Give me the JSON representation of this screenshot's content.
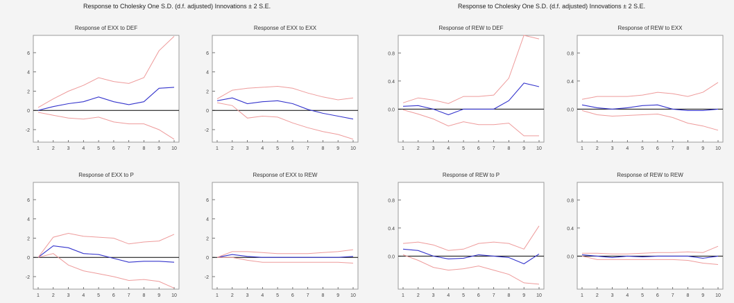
{
  "figures": [
    {
      "title": "Response to Cholesky One S.D. (d.f. adjusted) Innovations ± 2 S.E."
    },
    {
      "title": "Response to Cholesky One S.D. (d.f. adjusted) Innovations ± 2 S.E."
    }
  ],
  "colors": {
    "response": "#3333cc",
    "band": "#ee9a9a",
    "zero_line": "#000000",
    "frame": "#9a9a9a"
  },
  "chart_data": [
    {
      "type": "line",
      "title": "Response of EXX to DEF",
      "x": [
        1,
        2,
        3,
        4,
        5,
        6,
        7,
        8,
        9,
        10
      ],
      "yticks": [
        -2,
        0,
        2,
        4,
        6
      ],
      "ylim": [
        -3.3,
        7.8
      ],
      "series": [
        {
          "role": "response",
          "values": [
            0.0,
            0.4,
            0.7,
            0.9,
            1.4,
            0.9,
            0.6,
            0.9,
            2.3,
            2.4
          ]
        },
        {
          "role": "upper",
          "values": [
            0.3,
            1.2,
            2.0,
            2.6,
            3.4,
            3.0,
            2.8,
            3.4,
            6.2,
            7.7
          ]
        },
        {
          "role": "lower",
          "values": [
            -0.2,
            -0.5,
            -0.8,
            -0.9,
            -0.7,
            -1.2,
            -1.4,
            -1.4,
            -2.0,
            -3.0
          ]
        }
      ]
    },
    {
      "type": "line",
      "title": "Response of EXX to EXX",
      "x": [
        1,
        2,
        3,
        4,
        5,
        6,
        7,
        8,
        9,
        10
      ],
      "yticks": [
        -2,
        0,
        2,
        4,
        6
      ],
      "ylim": [
        -3.3,
        7.8
      ],
      "series": [
        {
          "role": "response",
          "values": [
            1.0,
            1.3,
            0.7,
            0.9,
            1.0,
            0.7,
            0.1,
            -0.3,
            -0.6,
            -0.9
          ]
        },
        {
          "role": "upper",
          "values": [
            1.2,
            2.1,
            2.3,
            2.4,
            2.5,
            2.3,
            1.8,
            1.4,
            1.1,
            1.3
          ]
        },
        {
          "role": "lower",
          "values": [
            0.8,
            0.5,
            -0.8,
            -0.6,
            -0.7,
            -1.3,
            -1.8,
            -2.2,
            -2.5,
            -3.0
          ]
        }
      ]
    },
    {
      "type": "line",
      "title": "Response of REW to DEF",
      "x": [
        1,
        2,
        3,
        4,
        5,
        6,
        7,
        8,
        9,
        10
      ],
      "yticks": [
        0.0,
        0.4,
        0.8
      ],
      "yticklabels": [
        "0.0",
        "0.4",
        "0.8"
      ],
      "ylim": [
        -0.47,
        1.05
      ],
      "series": [
        {
          "role": "response",
          "values": [
            0.04,
            0.05,
            0.0,
            -0.08,
            0.0,
            0.0,
            0.0,
            0.12,
            0.37,
            0.32
          ]
        },
        {
          "role": "upper",
          "values": [
            0.09,
            0.16,
            0.13,
            0.08,
            0.18,
            0.18,
            0.2,
            0.44,
            1.05,
            1.0
          ]
        },
        {
          "role": "lower",
          "values": [
            -0.01,
            -0.07,
            -0.14,
            -0.24,
            -0.18,
            -0.22,
            -0.22,
            -0.2,
            -0.38,
            -0.38
          ]
        }
      ]
    },
    {
      "type": "line",
      "title": "Response of REW to EXX",
      "x": [
        1,
        2,
        3,
        4,
        5,
        6,
        7,
        8,
        9,
        10
      ],
      "yticks": [
        0.0,
        0.4,
        0.8
      ],
      "yticklabels": [
        "0.0",
        "0.4",
        "0.8"
      ],
      "ylim": [
        -0.47,
        1.05
      ],
      "series": [
        {
          "role": "response",
          "values": [
            0.06,
            0.02,
            0.0,
            0.02,
            0.05,
            0.06,
            0.0,
            -0.02,
            -0.02,
            0.0
          ]
        },
        {
          "role": "upper",
          "values": [
            0.14,
            0.18,
            0.18,
            0.18,
            0.2,
            0.24,
            0.22,
            0.18,
            0.24,
            0.38
          ]
        },
        {
          "role": "lower",
          "values": [
            -0.02,
            -0.08,
            -0.1,
            -0.09,
            -0.08,
            -0.07,
            -0.12,
            -0.2,
            -0.24,
            -0.3
          ]
        }
      ]
    },
    {
      "type": "line",
      "title": "Response of EXX to P",
      "x": [
        1,
        2,
        3,
        4,
        5,
        6,
        7,
        8,
        9,
        10
      ],
      "yticks": [
        -2,
        0,
        2,
        4,
        6
      ],
      "ylim": [
        -3.3,
        7.8
      ],
      "series": [
        {
          "role": "response",
          "values": [
            0.0,
            1.2,
            1.0,
            0.4,
            0.3,
            -0.1,
            -0.5,
            -0.4,
            -0.4,
            -0.5
          ]
        },
        {
          "role": "upper",
          "values": [
            0.0,
            2.1,
            2.5,
            2.2,
            2.1,
            2.0,
            1.4,
            1.6,
            1.7,
            2.4
          ]
        },
        {
          "role": "lower",
          "values": [
            0.0,
            0.4,
            -0.8,
            -1.4,
            -1.7,
            -2.0,
            -2.4,
            -2.3,
            -2.5,
            -3.2
          ]
        }
      ]
    },
    {
      "type": "line",
      "title": "Response of EXX to REW",
      "x": [
        1,
        2,
        3,
        4,
        5,
        6,
        7,
        8,
        9,
        10
      ],
      "yticks": [
        -2,
        0,
        2,
        4,
        6
      ],
      "ylim": [
        -3.3,
        7.8
      ],
      "series": [
        {
          "role": "response",
          "values": [
            0.0,
            0.3,
            0.1,
            0.0,
            0.0,
            0.0,
            0.0,
            0.0,
            0.0,
            0.1
          ]
        },
        {
          "role": "upper",
          "values": [
            0.0,
            0.6,
            0.6,
            0.5,
            0.4,
            0.4,
            0.4,
            0.5,
            0.6,
            0.8
          ]
        },
        {
          "role": "lower",
          "values": [
            0.0,
            0.0,
            -0.3,
            -0.5,
            -0.5,
            -0.5,
            -0.5,
            -0.5,
            -0.5,
            -0.6
          ]
        }
      ]
    },
    {
      "type": "line",
      "title": "Response of REW to P",
      "x": [
        1,
        2,
        3,
        4,
        5,
        6,
        7,
        8,
        9,
        10
      ],
      "yticks": [
        0.0,
        0.4,
        0.8
      ],
      "yticklabels": [
        "0.0",
        "0.4",
        "0.8"
      ],
      "ylim": [
        -0.47,
        1.05
      ],
      "series": [
        {
          "role": "response",
          "values": [
            0.1,
            0.08,
            0.0,
            -0.04,
            -0.03,
            0.02,
            0.0,
            -0.02,
            -0.11,
            0.03
          ]
        },
        {
          "role": "upper",
          "values": [
            0.18,
            0.2,
            0.16,
            0.08,
            0.1,
            0.18,
            0.2,
            0.18,
            0.1,
            0.43
          ]
        },
        {
          "role": "lower",
          "values": [
            0.02,
            -0.06,
            -0.16,
            -0.2,
            -0.18,
            -0.14,
            -0.2,
            -0.26,
            -0.38,
            -0.4
          ]
        }
      ]
    },
    {
      "type": "line",
      "title": "Response of REW to REW",
      "x": [
        1,
        2,
        3,
        4,
        5,
        6,
        7,
        8,
        9,
        10
      ],
      "yticks": [
        0.0,
        0.4,
        0.8
      ],
      "yticklabels": [
        "0.0",
        "0.4",
        "0.8"
      ],
      "ylim": [
        -0.47,
        1.05
      ],
      "series": [
        {
          "role": "response",
          "values": [
            0.02,
            0.0,
            -0.02,
            0.0,
            -0.01,
            0.0,
            0.0,
            0.0,
            -0.03,
            0.0
          ]
        },
        {
          "role": "upper",
          "values": [
            0.04,
            0.04,
            0.03,
            0.03,
            0.04,
            0.05,
            0.05,
            0.06,
            0.05,
            0.14
          ]
        },
        {
          "role": "lower",
          "values": [
            0.0,
            -0.05,
            -0.05,
            -0.05,
            -0.05,
            -0.05,
            -0.05,
            -0.06,
            -0.1,
            -0.12
          ]
        }
      ]
    }
  ]
}
